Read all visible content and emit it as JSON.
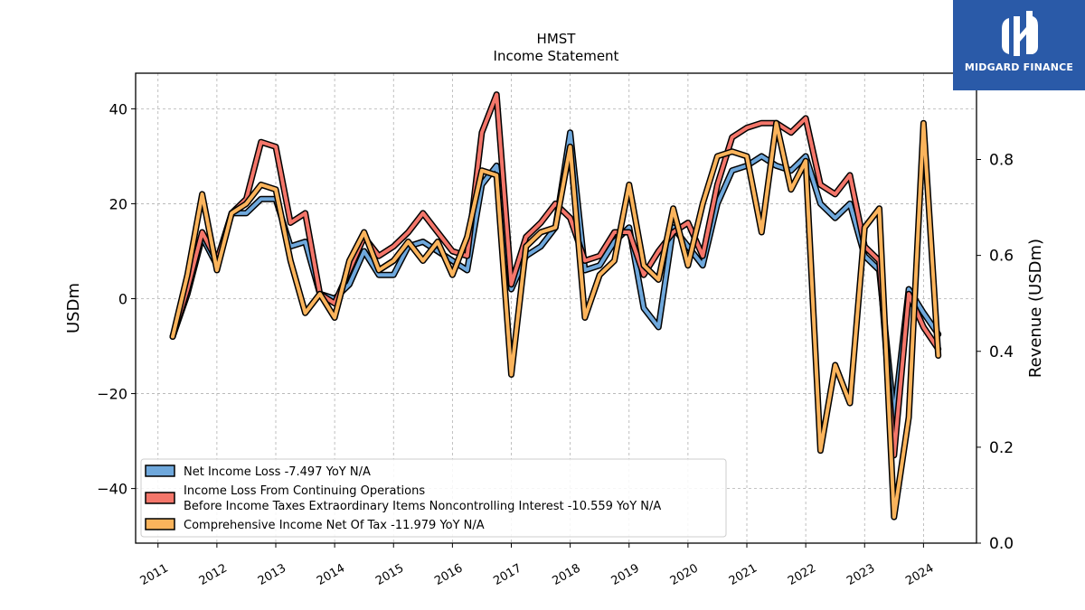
{
  "chart_data": {
    "type": "line",
    "title": "HMST",
    "subtitle": "Income Statement",
    "ylabel": "USDm",
    "ylabel_right": "Revenue (USDm)",
    "ylim": [
      -51.5,
      47.5
    ],
    "ylim_right": [
      0.0,
      0.98
    ],
    "yticks": [
      -40,
      -20,
      0,
      20,
      40
    ],
    "yticks_labels": [
      "−40",
      "−20",
      "0",
      "20",
      "40"
    ],
    "yticks_right": [
      0.0,
      0.2,
      0.4,
      0.6,
      0.8
    ],
    "yticks_right_labels": [
      "0.0",
      "0.2",
      "0.4",
      "0.6",
      "0.8"
    ],
    "xlim": [
      2010.62,
      2024.9
    ],
    "xticks": [
      2011,
      2012,
      2013,
      2014,
      2015,
      2016,
      2017,
      2018,
      2019,
      2020,
      2021,
      2022,
      2023,
      2024
    ],
    "xtick_labels": [
      "2011",
      "2012",
      "2013",
      "2014",
      "2015",
      "2016",
      "2017",
      "2018",
      "2019",
      "2020",
      "2021",
      "2022",
      "2023",
      "2024"
    ],
    "grid": true,
    "legend_position": "lower-left",
    "x": [
      2011.25,
      2011.5,
      2011.75,
      2012.0,
      2012.25,
      2012.5,
      2012.75,
      2013.0,
      2013.25,
      2013.5,
      2013.75,
      2014.0,
      2014.25,
      2014.5,
      2014.75,
      2015.0,
      2015.25,
      2015.5,
      2015.75,
      2016.0,
      2016.25,
      2016.5,
      2016.75,
      2017.0,
      2017.25,
      2017.5,
      2017.75,
      2018.0,
      2018.25,
      2018.5,
      2018.75,
      2019.0,
      2019.25,
      2019.5,
      2019.75,
      2020.0,
      2020.25,
      2020.5,
      2020.75,
      2021.0,
      2021.25,
      2021.5,
      2021.75,
      2022.0,
      2022.25,
      2022.5,
      2022.75,
      2023.0,
      2023.25,
      2023.5,
      2023.75,
      2024.0,
      2024.25
    ],
    "series": [
      {
        "name": "Net Income Loss  -7.497 YoY N/A",
        "color": "#6fa8dc",
        "values": [
          -8,
          1,
          13,
          7,
          18,
          18,
          21,
          21,
          11,
          12,
          1,
          0,
          3,
          10,
          5,
          5,
          11,
          12,
          10,
          8,
          6,
          24,
          28,
          2,
          9,
          11,
          15,
          35,
          6,
          7,
          12,
          15,
          -2,
          -6,
          15,
          11,
          7,
          20,
          27,
          28,
          30,
          28,
          27,
          30,
          20,
          17,
          20,
          9,
          6,
          -25,
          2,
          -3,
          -7.5
        ]
      },
      {
        "name": "Income Loss From Continuing Operations\nBefore Income Taxes Extraordinary Items Noncontrolling Interest  -10.559 YoY N/A",
        "color": "#f4766a",
        "values": [
          -8,
          2,
          14,
          8,
          18,
          21,
          33,
          32,
          16,
          18,
          1,
          -1,
          6,
          13,
          9,
          11,
          14,
          18,
          14,
          10,
          9,
          35,
          43,
          3,
          13,
          16,
          20,
          17,
          8,
          9,
          14,
          14,
          5,
          10,
          14,
          16,
          9,
          24,
          34,
          36,
          37,
          37,
          35,
          38,
          24,
          22,
          26,
          11,
          8,
          -33,
          1,
          -6,
          -10.6
        ]
      },
      {
        "name": "Comprehensive Income Net Of Tax  -11.979 YoY N/A",
        "color": "#fbb45c",
        "values": [
          -8,
          5,
          22,
          6,
          18,
          20,
          24,
          23,
          8,
          -3,
          1,
          -4,
          8,
          14,
          6,
          8,
          12,
          8,
          12,
          5,
          13,
          27,
          26,
          -16,
          11,
          14,
          15,
          32,
          -4,
          5,
          8,
          24,
          7,
          4,
          19,
          7,
          20,
          30,
          31,
          30,
          14,
          37,
          23,
          29,
          -32,
          -14,
          -22,
          15,
          19,
          -46,
          -25,
          37,
          -12
        ]
      }
    ]
  },
  "brand": {
    "name": "MIDGARD FINANCE",
    "background": "#2a5aa8"
  }
}
